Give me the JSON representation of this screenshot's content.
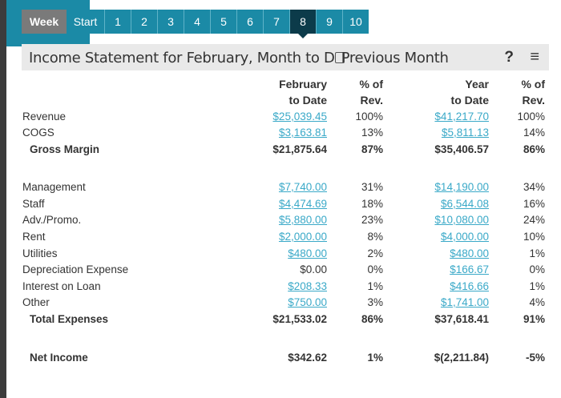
{
  "tabs": [
    "Week",
    "Start",
    "1",
    "2",
    "3",
    "4",
    "5",
    "6",
    "7",
    "8",
    "9",
    "10"
  ],
  "selected_tab": "8",
  "header": {
    "title": "Income Statement for February, Month to D",
    "overlay": "Previous Month",
    "help": "?",
    "menu": "≡"
  },
  "columns": [
    [
      "February",
      "to Date"
    ],
    [
      "% of",
      "Rev."
    ],
    [
      "Year",
      "to Date"
    ],
    [
      "% of",
      "Rev."
    ]
  ],
  "rows": [
    {
      "label": "Revenue",
      "feb": "$25,039.45",
      "feb_pct": "100%",
      "ytd": "$41,217.70",
      "ytd_pct": "100%",
      "feb_link": true,
      "ytd_link": true
    },
    {
      "label": "COGS",
      "feb": "$3,163.81",
      "feb_pct": "13%",
      "ytd": "$5,811.13",
      "ytd_pct": "14%",
      "feb_link": true,
      "ytd_link": true
    },
    {
      "label": "Gross Margin",
      "feb": "$21,875.64",
      "feb_pct": "87%",
      "ytd": "$35,406.57",
      "ytd_pct": "86%",
      "bold": true
    },
    {
      "label": "Management",
      "feb": "$7,740.00",
      "feb_pct": "31%",
      "ytd": "$14,190.00",
      "ytd_pct": "34%",
      "feb_link": true,
      "ytd_link": true
    },
    {
      "label": "Staff",
      "feb": "$4,474.69",
      "feb_pct": "18%",
      "ytd": "$6,544.08",
      "ytd_pct": "16%",
      "feb_link": true,
      "ytd_link": true
    },
    {
      "label": "Adv./Promo.",
      "feb": "$5,880.00",
      "feb_pct": "23%",
      "ytd": "$10,080.00",
      "ytd_pct": "24%",
      "feb_link": true,
      "ytd_link": true
    },
    {
      "label": "Rent",
      "feb": "$2,000.00",
      "feb_pct": "8%",
      "ytd": "$4,000.00",
      "ytd_pct": "10%",
      "feb_link": true,
      "ytd_link": true
    },
    {
      "label": "Utilities",
      "feb": "$480.00",
      "feb_pct": "2%",
      "ytd": "$480.00",
      "ytd_pct": "1%",
      "feb_link": true,
      "ytd_link": true
    },
    {
      "label": "Depreciation Expense",
      "feb": "$0.00",
      "feb_pct": "0%",
      "ytd": "$166.67",
      "ytd_pct": "0%",
      "ytd_link": true
    },
    {
      "label": "Interest on Loan",
      "feb": "$208.33",
      "feb_pct": "1%",
      "ytd": "$416.66",
      "ytd_pct": "1%",
      "feb_link": true,
      "ytd_link": true
    },
    {
      "label": "Other",
      "feb": "$750.00",
      "feb_pct": "3%",
      "ytd": "$1,741.00",
      "ytd_pct": "4%",
      "feb_link": true,
      "ytd_link": true
    },
    {
      "label": "Total Expenses",
      "feb": "$21,533.02",
      "feb_pct": "86%",
      "ytd": "$37,618.41",
      "ytd_pct": "91%",
      "bold": true
    },
    {
      "label": "Net Income",
      "feb": "$342.62",
      "feb_pct": "1%",
      "ytd": "$(2,211.84)",
      "ytd_pct": "-5%",
      "bold": true
    }
  ],
  "colors": {
    "teal": "#1b8aa6",
    "selected": "#0c3b4a",
    "link": "#3aa9c8"
  }
}
